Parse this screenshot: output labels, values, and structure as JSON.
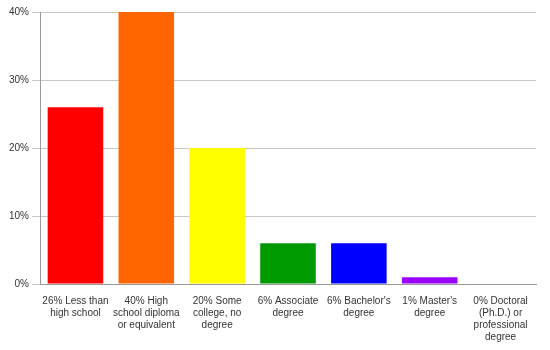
{
  "chart_data": {
    "type": "bar",
    "categories": [
      "26% Less than high school",
      "40% High school diploma or equivalent",
      "20% Some college, no degree",
      "6% Associate degree",
      "6% Bachelor's degree",
      "1% Master's degree",
      "0% Doctoral (Ph.D.) or professional degree"
    ],
    "values": [
      26,
      40,
      20,
      6,
      6,
      1,
      0
    ],
    "colors": [
      "#ff0000",
      "#ff6600",
      "#ffff00",
      "#009900",
      "#0000ff",
      "#9900ff",
      "#ff00ff"
    ],
    "ylim": [
      0,
      40
    ],
    "yticks": [
      {
        "value": 0,
        "label": "0%"
      },
      {
        "value": 10,
        "label": "10%"
      },
      {
        "value": 20,
        "label": "20%"
      },
      {
        "value": 30,
        "label": "30%"
      },
      {
        "value": 40,
        "label": "40%"
      }
    ],
    "grid": true
  }
}
